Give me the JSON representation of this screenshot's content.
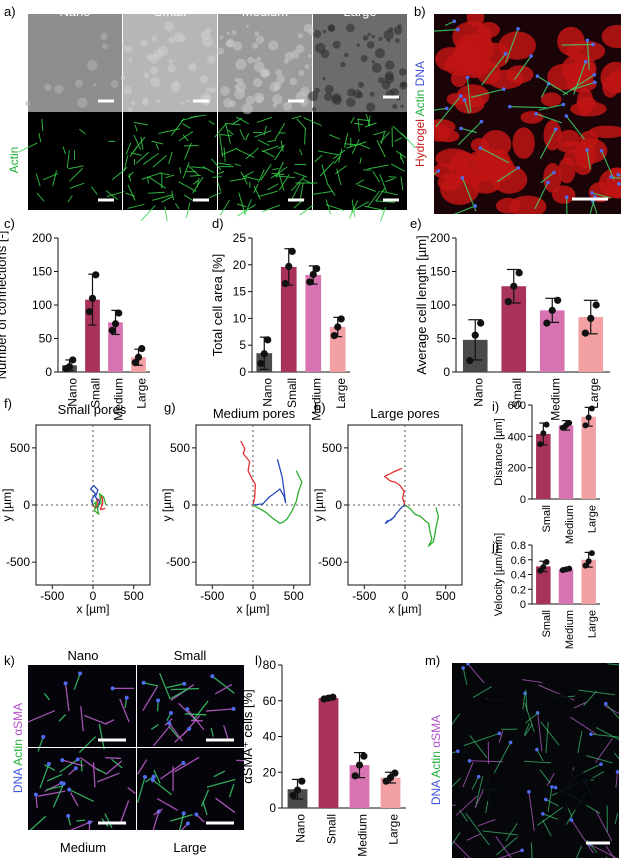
{
  "panel_labels": [
    "a)",
    "b)",
    "c)",
    "d)",
    "e)",
    "f)",
    "g)",
    "h)",
    "i)",
    "j)",
    "k)",
    "l)",
    "m)"
  ],
  "categories": [
    "Nano",
    "Small",
    "Medium",
    "Large"
  ],
  "colors": {
    "Nano": "#4a4a4a",
    "Small": "#a8325a",
    "Medium": "#d873b2",
    "Large": "#f2a0a4",
    "track_red": "#e53030",
    "track_blue": "#2a4bbd",
    "track_green": "#2fae2f",
    "actin": "#35d04a",
    "dna": "#3d55d6",
    "hydrogel": "#c81818",
    "asma": "#c060d0"
  },
  "panel_a": {
    "columns": [
      "Nano",
      "Small",
      "Medium",
      "Large"
    ],
    "row_label": "Actin"
  },
  "panel_b": {
    "labels": [
      "Hydrogel",
      "Actin",
      "DNA"
    ]
  },
  "panel_k": {
    "labels": [
      "DNA",
      "Actin",
      "αSMA"
    ],
    "titles": [
      "Nano",
      "Small",
      "Medium",
      "Large"
    ]
  },
  "panel_m": {
    "labels": [
      "DNA",
      "Actin",
      "αSMA"
    ]
  },
  "panel_fgh": {
    "titles": [
      "Small pores",
      "Medium pores",
      "Large pores"
    ],
    "xlabel": "x [µm]",
    "ylabel": "y [µm]",
    "ticks": [
      -500,
      0,
      500
    ]
  },
  "chart_data": [
    {
      "id": "c",
      "type": "bar",
      "categories": [
        "Nano",
        "Small",
        "Medium",
        "Large"
      ],
      "values": [
        10,
        108,
        74,
        22
      ],
      "errors": [
        8,
        38,
        18,
        12
      ],
      "points": [
        [
          5,
          8,
          18
        ],
        [
          90,
          110,
          145
        ],
        [
          62,
          72,
          88
        ],
        [
          14,
          22,
          35
        ]
      ],
      "ylabel": "Number of connections [-]",
      "ylim": [
        0,
        200
      ],
      "yticks": [
        0,
        50,
        100,
        150,
        200
      ]
    },
    {
      "id": "d",
      "type": "bar",
      "categories": [
        "Nano",
        "Small",
        "Medium",
        "Large"
      ],
      "values": [
        3.5,
        19.6,
        18.1,
        8.4
      ],
      "errors": [
        3,
        3.4,
        1.7,
        1.8
      ],
      "points": [
        [
          1.6,
          3.4,
          6
        ],
        [
          16.5,
          19.7,
          22.5
        ],
        [
          16.8,
          18.2,
          19.3
        ],
        [
          6.8,
          8.4,
          9.9
        ]
      ],
      "ylabel": "Total cell area [%]",
      "ylim": [
        0,
        25
      ],
      "yticks": [
        0,
        5,
        10,
        15,
        20,
        25
      ]
    },
    {
      "id": "e",
      "type": "bar",
      "categories": [
        "Nano",
        "Small",
        "Medium",
        "Large"
      ],
      "values": [
        48,
        128,
        92,
        82
      ],
      "errors": [
        30,
        25,
        18,
        25
      ],
      "points": [
        [
          17,
          55,
          73
        ],
        [
          105,
          128,
          148
        ],
        [
          73,
          92,
          107
        ],
        [
          58,
          80,
          100
        ]
      ],
      "ylabel": "Average cell length [µm]",
      "ylim": [
        0,
        200
      ],
      "yticks": [
        0,
        50,
        100,
        150,
        200
      ]
    },
    {
      "id": "i",
      "type": "bar",
      "categories": [
        "Small",
        "Medium",
        "Large"
      ],
      "values": [
        415,
        470,
        525
      ],
      "errors": [
        70,
        30,
        60
      ],
      "points": [
        [
          350,
          420,
          475
        ],
        [
          455,
          470,
          485
        ],
        [
          470,
          520,
          578
        ]
      ],
      "ylabel": "Distance [µm]",
      "ylim": [
        0,
        600
      ],
      "yticks": [
        0,
        200,
        400,
        600
      ]
    },
    {
      "id": "j",
      "type": "bar",
      "categories": [
        "Small",
        "Medium",
        "Large"
      ],
      "values": [
        0.51,
        0.47,
        0.6
      ],
      "errors": [
        0.07,
        0.02,
        0.1
      ],
      "points": [
        [
          0.45,
          0.5,
          0.57
        ],
        [
          0.46,
          0.47,
          0.48
        ],
        [
          0.52,
          0.58,
          0.69
        ]
      ],
      "ylabel": "Velocity [µm/min]",
      "ylim": [
        0,
        0.8
      ],
      "yticks": [
        0,
        0.2,
        0.4,
        0.6,
        0.8
      ]
    },
    {
      "id": "l",
      "type": "bar",
      "categories": [
        "Nano",
        "Small",
        "Medium",
        "Large"
      ],
      "values": [
        10.5,
        61.5,
        24,
        17
      ],
      "errors": [
        5.5,
        1,
        7,
        3
      ],
      "points": [
        [
          7,
          10,
          15
        ],
        [
          61,
          61.5,
          62
        ],
        [
          18,
          24,
          29
        ],
        [
          15,
          17,
          19.5
        ]
      ],
      "ylabel": "αSMA⁺ cells [%]",
      "ylim": [
        0,
        80
      ],
      "yticks": [
        0,
        20,
        40,
        60,
        80
      ]
    },
    {
      "id": "f",
      "type": "line",
      "title": "Small pores",
      "xlabel": "x [µm]",
      "ylabel": "y [µm]",
      "xlim": [
        -700,
        700
      ],
      "ylim": [
        -700,
        700
      ],
      "series": [
        {
          "color": "#e53030",
          "x": [
            0,
            30,
            60,
            40,
            80,
            110,
            120,
            90,
            150
          ],
          "y": [
            0,
            -30,
            10,
            60,
            40,
            80,
            20,
            -40,
            -30
          ]
        },
        {
          "color": "#2a4bbd",
          "x": [
            0,
            -20,
            30,
            -30,
            10,
            60,
            30,
            80,
            60
          ],
          "y": [
            0,
            40,
            100,
            140,
            170,
            130,
            70,
            30,
            -30
          ]
        },
        {
          "color": "#2fae2f",
          "x": [
            0,
            40,
            20,
            70,
            50,
            100,
            80,
            130,
            160
          ],
          "y": [
            0,
            30,
            -50,
            -80,
            -20,
            20,
            100,
            70,
            0
          ]
        }
      ]
    },
    {
      "id": "g",
      "type": "line",
      "title": "Medium pores",
      "xlabel": "x [µm]",
      "ylabel": "y [µm]",
      "xlim": [
        -700,
        700
      ],
      "ylim": [
        -700,
        700
      ],
      "series": [
        {
          "color": "#e53030",
          "x": [
            0,
            20,
            30,
            -20,
            -60,
            -40,
            -120,
            -100,
            -150
          ],
          "y": [
            0,
            60,
            180,
            240,
            300,
            380,
            450,
            490,
            560
          ]
        },
        {
          "color": "#2a4bbd",
          "x": [
            0,
            120,
            200,
            280,
            330,
            380,
            400,
            360,
            330,
            300
          ],
          "y": [
            0,
            10,
            70,
            110,
            140,
            80,
            20,
            240,
            320,
            400
          ]
        },
        {
          "color": "#2fae2f",
          "x": [
            0,
            150,
            250,
            330,
            370,
            420,
            480,
            530,
            560,
            600,
            530
          ],
          "y": [
            0,
            -60,
            -120,
            -160,
            -150,
            -120,
            -50,
            30,
            120,
            200,
            300
          ]
        }
      ]
    },
    {
      "id": "h",
      "type": "line",
      "title": "Large pores",
      "xlabel": "x [µm]",
      "ylabel": "y [µm]",
      "xlim": [
        -700,
        700
      ],
      "ylim": [
        -700,
        700
      ],
      "series": [
        {
          "color": "#e53030",
          "x": [
            0,
            -30,
            -10,
            -60,
            -120,
            -180,
            -250,
            -140,
            -40
          ],
          "y": [
            0,
            60,
            120,
            170,
            200,
            210,
            250,
            290,
            320
          ]
        },
        {
          "color": "#2a4bbd",
          "x": [
            0,
            -40,
            -90,
            -130,
            -170,
            -220,
            -240,
            -120
          ],
          "y": [
            0,
            -20,
            -60,
            -100,
            -130,
            -140,
            -160,
            -100
          ]
        },
        {
          "color": "#2fae2f",
          "x": [
            0,
            60,
            120,
            190,
            250,
            290,
            310,
            330,
            290,
            350,
            380,
            410,
            380
          ],
          "y": [
            0,
            -30,
            -80,
            -100,
            -140,
            -160,
            -240,
            -300,
            -360,
            -320,
            -200,
            -100,
            -20
          ]
        }
      ]
    }
  ]
}
